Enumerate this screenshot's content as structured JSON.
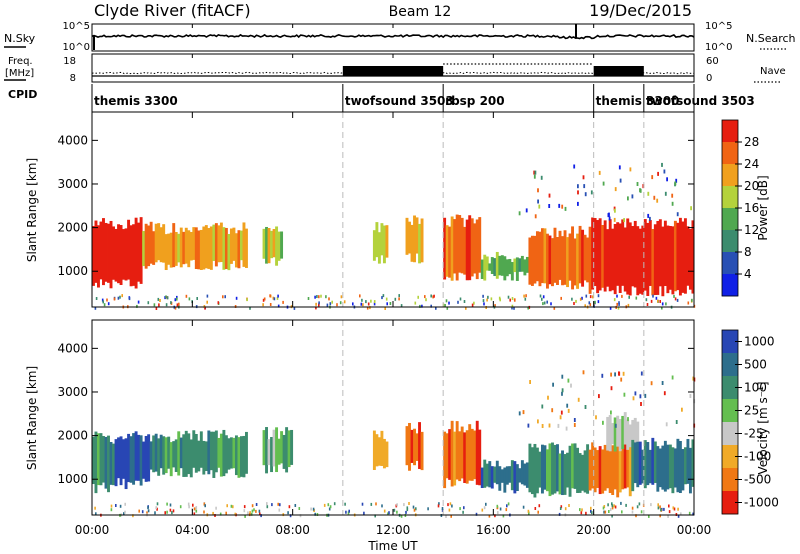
{
  "header": {
    "title": "Clyde River (fitACF)",
    "beam": "Beam 12",
    "date": "19/Dec/2015"
  },
  "noise_panel": {
    "left_label": "N.Sky",
    "right_label": "N.Search",
    "y_top": "10^5",
    "y_bottom": "10^0"
  },
  "freq_panel": {
    "left_label_1": "Freq.",
    "left_label_2": "[MHz]",
    "right_label": "Nave",
    "left_ticks": [
      "18",
      "8"
    ],
    "right_ticks": [
      "60",
      "0"
    ]
  },
  "cpid_panel": {
    "label": "CPID",
    "segments": [
      {
        "name": "themis 3300",
        "start": 0.0,
        "end": 10.0
      },
      {
        "name": "twofsound 3503",
        "start": 10.0,
        "end": 14.0
      },
      {
        "name": "rbsp 200",
        "start": 14.0,
        "end": 20.0
      },
      {
        "name": "themis 3300",
        "start": 20.0,
        "end": 22.0
      },
      {
        "name": "twofsound 3503",
        "start": 22.0,
        "end": 24.0
      }
    ]
  },
  "x_axis": {
    "label": "Time UT",
    "ticks": [
      "00:00",
      "04:00",
      "08:00",
      "12:00",
      "16:00",
      "20:00",
      "00:00"
    ],
    "range_hours": [
      0,
      24
    ]
  },
  "chart_data": [
    {
      "type": "heatmap",
      "id": "power",
      "ylabel": "Slant Range [km]",
      "yticks": [
        "1000",
        "2000",
        "3000",
        "4000"
      ],
      "ylim_km": [
        180,
        4650
      ],
      "xlim_hours": [
        0,
        24
      ],
      "colorbar": {
        "label": "Power [dB]",
        "ticks": [
          "4",
          "8",
          "12",
          "16",
          "20",
          "24",
          "28"
        ],
        "colors": [
          "#1020e6",
          "#2850b4",
          "#3c8c6e",
          "#50a850",
          "#b4d23c",
          "#f0a01e",
          "#f06414",
          "#e61e10"
        ]
      },
      "echo_regions": [
        {
          "t0": 0.0,
          "t1": 2.0,
          "r0": 700,
          "r1": 2100,
          "level": 7
        },
        {
          "t0": 2.0,
          "t1": 6.2,
          "r0": 1150,
          "r1": 2000,
          "level": 5
        },
        {
          "t0": 6.8,
          "t1": 7.6,
          "r0": 1200,
          "r1": 2000,
          "level": 4
        },
        {
          "t0": 11.2,
          "t1": 11.8,
          "r0": 1250,
          "r1": 2000,
          "level": 4
        },
        {
          "t0": 12.5,
          "t1": 13.2,
          "r0": 1300,
          "r1": 2200,
          "level": 5
        },
        {
          "t0": 14.0,
          "t1": 15.5,
          "r0": 850,
          "r1": 2150,
          "level": 6
        },
        {
          "t0": 15.5,
          "t1": 17.4,
          "r0": 900,
          "r1": 1300,
          "level": 3
        },
        {
          "t0": 17.4,
          "t1": 19.8,
          "r0": 700,
          "r1": 1900,
          "level": 6
        },
        {
          "t0": 19.8,
          "t1": 24.0,
          "r0": 550,
          "r1": 2100,
          "level": 7
        }
      ]
    },
    {
      "type": "heatmap",
      "id": "velocity",
      "ylabel": "Slant Range [km]",
      "yticks": [
        "1000",
        "2000",
        "3000",
        "4000"
      ],
      "ylim_km": [
        180,
        4650
      ],
      "xlim_hours": [
        0,
        24
      ],
      "colorbar": {
        "label": "Velocity [m s⁻¹]",
        "ticks": [
          "1000",
          "500",
          "100",
          "25",
          "-25",
          "-100",
          "-500",
          "-1000"
        ],
        "colors": [
          "#2846b4",
          "#2d6e8c",
          "#3c8c6e",
          "#64be50",
          "#c8c8c8",
          "#f0aa28",
          "#f07814",
          "#e61e10"
        ]
      },
      "echo_regions": [
        {
          "t0": 0.0,
          "t1": 0.9,
          "r0": 800,
          "r1": 1950,
          "level": 2
        },
        {
          "t0": 0.9,
          "t1": 2.3,
          "r0": 900,
          "r1": 1950,
          "level": 0
        },
        {
          "t0": 2.3,
          "t1": 6.2,
          "r0": 1150,
          "r1": 2000,
          "level": 2
        },
        {
          "t0": 6.8,
          "t1": 8.0,
          "r0": 1250,
          "r1": 2050,
          "level": 3
        },
        {
          "t0": 11.2,
          "t1": 11.8,
          "r0": 1250,
          "r1": 2000,
          "level": 5
        },
        {
          "t0": 12.5,
          "t1": 13.2,
          "r0": 1300,
          "r1": 2200,
          "level": 6
        },
        {
          "t0": 14.0,
          "t1": 15.5,
          "r0": 900,
          "r1": 2200,
          "level": 6
        },
        {
          "t0": 15.5,
          "t1": 17.4,
          "r0": 800,
          "r1": 1300,
          "level": 1
        },
        {
          "t0": 17.4,
          "t1": 19.8,
          "r0": 700,
          "r1": 1700,
          "level": 2
        },
        {
          "t0": 19.8,
          "t1": 21.5,
          "r0": 700,
          "r1": 1800,
          "level": 6
        },
        {
          "t0": 20.5,
          "t1": 21.8,
          "r0": 1700,
          "r1": 2400,
          "level": 4
        },
        {
          "t0": 21.5,
          "t1": 24.0,
          "r0": 800,
          "r1": 1800,
          "level": 1
        }
      ]
    }
  ]
}
